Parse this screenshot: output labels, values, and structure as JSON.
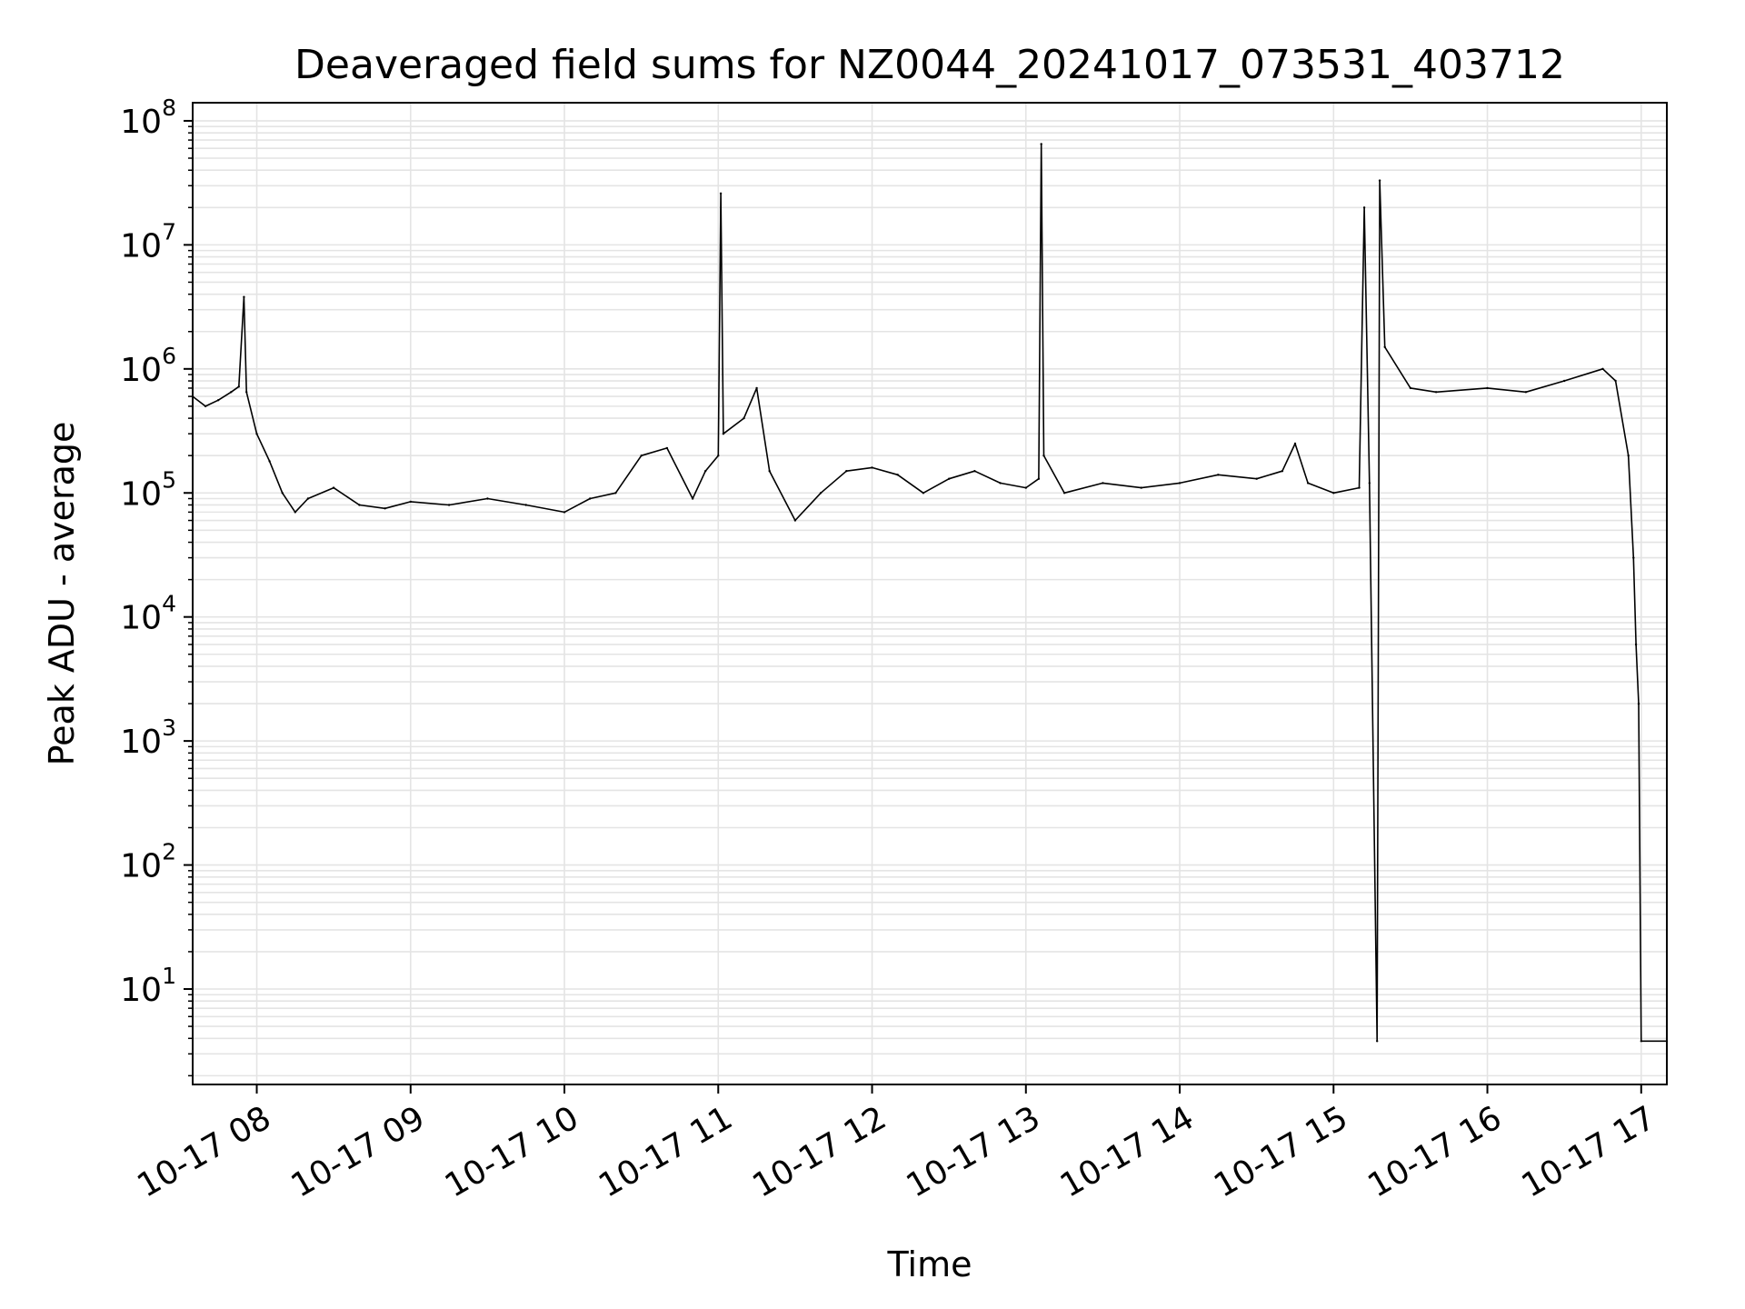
{
  "chart_data": {
    "type": "line",
    "title": "Deaveraged field sums for NZ0044_20241017_073531_403712",
    "xlabel": "Time",
    "ylabel": "Peak ADU - average",
    "yscale": "log",
    "ylim": [
      1.7,
      140000000
    ],
    "xlim": [
      "10-17 07:35",
      "10-17 17:10"
    ],
    "grid": true,
    "x_ticks": [
      {
        "label": "10-17 08",
        "time": "10-17 08:00"
      },
      {
        "label": "10-17 09",
        "time": "10-17 09:00"
      },
      {
        "label": "10-17 10",
        "time": "10-17 10:00"
      },
      {
        "label": "10-17 11",
        "time": "10-17 11:00"
      },
      {
        "label": "10-17 12",
        "time": "10-17 12:00"
      },
      {
        "label": "10-17 13",
        "time": "10-17 13:00"
      },
      {
        "label": "10-17 14",
        "time": "10-17 14:00"
      },
      {
        "label": "10-17 15",
        "time": "10-17 15:00"
      },
      {
        "label": "10-17 16",
        "time": "10-17 16:00"
      },
      {
        "label": "10-17 17",
        "time": "10-17 17:00"
      }
    ],
    "y_ticks": [
      {
        "base": "10",
        "exp": "1",
        "value": 10
      },
      {
        "base": "10",
        "exp": "2",
        "value": 100
      },
      {
        "base": "10",
        "exp": "3",
        "value": 1000
      },
      {
        "base": "10",
        "exp": "4",
        "value": 10000
      },
      {
        "base": "10",
        "exp": "5",
        "value": 100000
      },
      {
        "base": "10",
        "exp": "6",
        "value": 1000000
      },
      {
        "base": "10",
        "exp": "7",
        "value": 10000000
      },
      {
        "base": "10",
        "exp": "8",
        "value": 100000000
      }
    ],
    "series": [
      {
        "color": "#000000",
        "points": [
          [
            "10-17 07:35",
            600000
          ],
          [
            "10-17 07:40",
            500000
          ],
          [
            "10-17 07:45",
            560000
          ],
          [
            "10-17 07:50",
            650000
          ],
          [
            "10-17 07:53",
            720000
          ],
          [
            "10-17 07:55",
            3800000
          ],
          [
            "10-17 07:56",
            650000
          ],
          [
            "10-17 08:00",
            300000
          ],
          [
            "10-17 08:05",
            180000
          ],
          [
            "10-17 08:10",
            100000
          ],
          [
            "10-17 08:15",
            70000
          ],
          [
            "10-17 08:20",
            90000
          ],
          [
            "10-17 08:30",
            110000
          ],
          [
            "10-17 08:40",
            80000
          ],
          [
            "10-17 08:50",
            75000
          ],
          [
            "10-17 09:00",
            85000
          ],
          [
            "10-17 09:15",
            80000
          ],
          [
            "10-17 09:30",
            90000
          ],
          [
            "10-17 09:45",
            80000
          ],
          [
            "10-17 10:00",
            70000
          ],
          [
            "10-17 10:10",
            90000
          ],
          [
            "10-17 10:20",
            100000
          ],
          [
            "10-17 10:30",
            200000
          ],
          [
            "10-17 10:40",
            230000
          ],
          [
            "10-17 10:50",
            90000
          ],
          [
            "10-17 10:55",
            150000
          ],
          [
            "10-17 11:00",
            200000
          ],
          [
            "10-17 11:01",
            26000000
          ],
          [
            "10-17 11:02",
            300000
          ],
          [
            "10-17 11:10",
            400000
          ],
          [
            "10-17 11:15",
            700000
          ],
          [
            "10-17 11:20",
            150000
          ],
          [
            "10-17 11:30",
            60000
          ],
          [
            "10-17 11:40",
            100000
          ],
          [
            "10-17 11:50",
            150000
          ],
          [
            "10-17 12:00",
            160000
          ],
          [
            "10-17 12:10",
            140000
          ],
          [
            "10-17 12:20",
            100000
          ],
          [
            "10-17 12:30",
            130000
          ],
          [
            "10-17 12:40",
            150000
          ],
          [
            "10-17 12:50",
            120000
          ],
          [
            "10-17 13:00",
            110000
          ],
          [
            "10-17 13:05",
            130000
          ],
          [
            "10-17 13:06",
            65000000
          ],
          [
            "10-17 13:07",
            200000
          ],
          [
            "10-17 13:15",
            100000
          ],
          [
            "10-17 13:30",
            120000
          ],
          [
            "10-17 13:45",
            110000
          ],
          [
            "10-17 14:00",
            120000
          ],
          [
            "10-17 14:15",
            140000
          ],
          [
            "10-17 14:30",
            130000
          ],
          [
            "10-17 14:40",
            150000
          ],
          [
            "10-17 14:45",
            250000
          ],
          [
            "10-17 14:50",
            120000
          ],
          [
            "10-17 15:00",
            100000
          ],
          [
            "10-17 15:10",
            110000
          ],
          [
            "10-17 15:12",
            20000000
          ],
          [
            "10-17 15:14",
            120000
          ],
          [
            "10-17 15:17",
            3.8
          ],
          [
            "10-17 15:18",
            33000000
          ],
          [
            "10-17 15:20",
            1500000
          ],
          [
            "10-17 15:30",
            700000
          ],
          [
            "10-17 15:40",
            650000
          ],
          [
            "10-17 16:00",
            700000
          ],
          [
            "10-17 16:15",
            650000
          ],
          [
            "10-17 16:30",
            800000
          ],
          [
            "10-17 16:45",
            1000000
          ],
          [
            "10-17 16:50",
            800000
          ],
          [
            "10-17 16:55",
            200000
          ],
          [
            "10-17 16:57",
            30000
          ],
          [
            "10-17 16:58",
            6000
          ],
          [
            "10-17 16:59",
            2000
          ],
          [
            "10-17 17:00",
            3.8
          ],
          [
            "10-17 17:10",
            3.8
          ]
        ]
      }
    ]
  }
}
